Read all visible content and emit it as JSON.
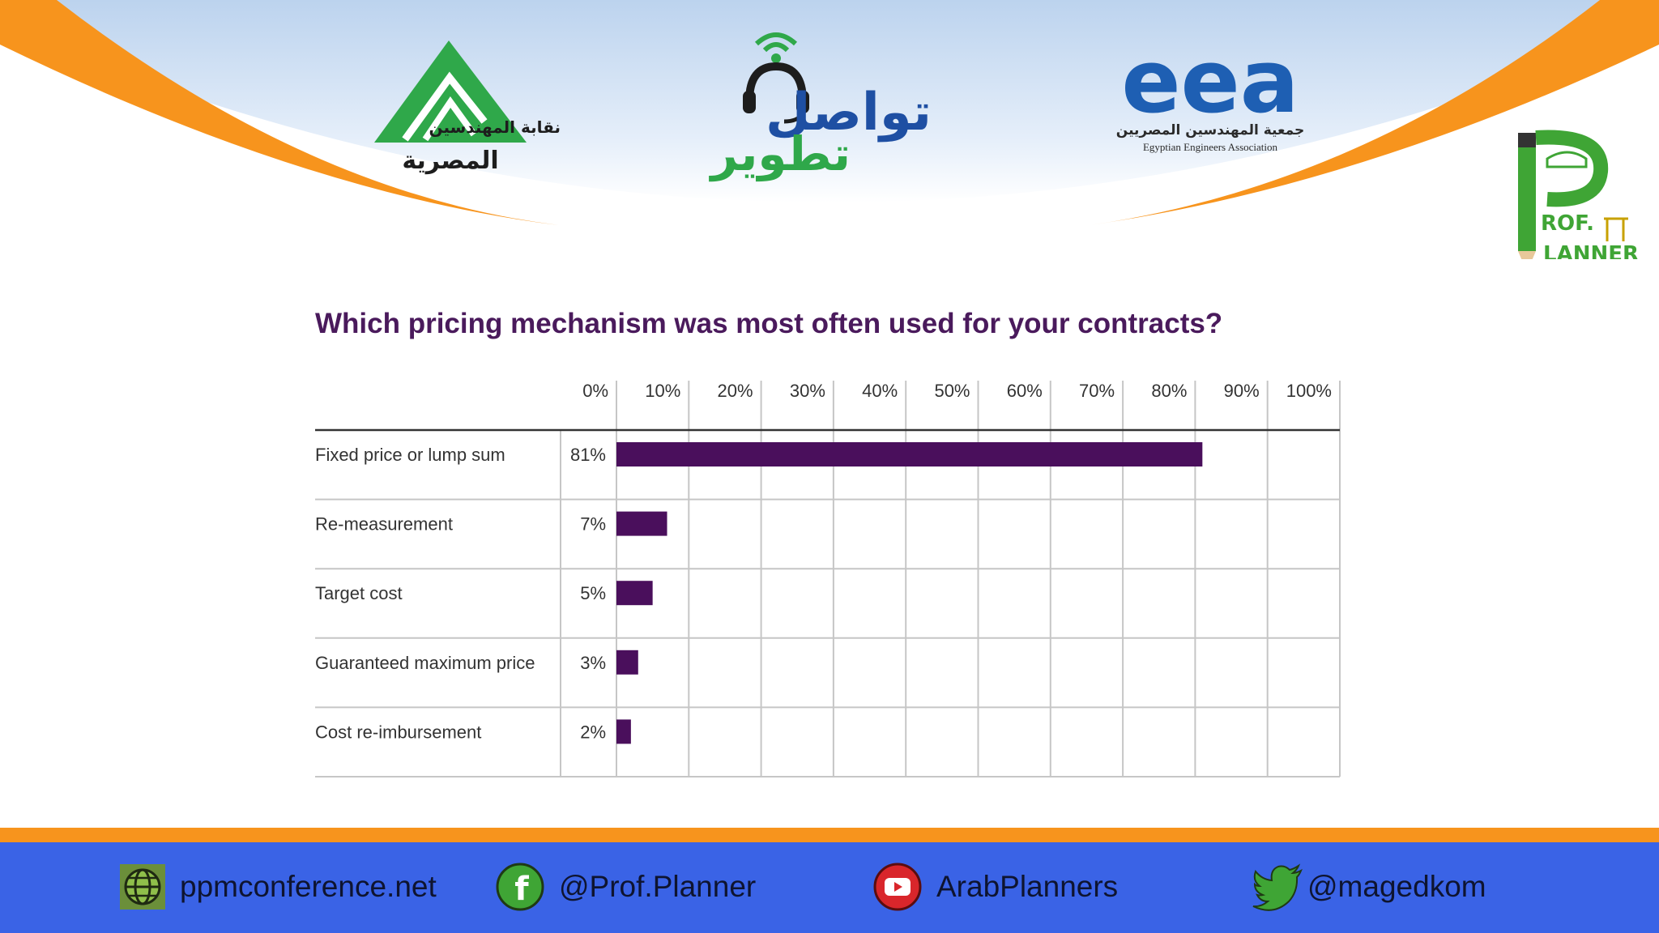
{
  "header": {
    "logos": [
      {
        "name": "engineers-syndicate-logo",
        "line1": "نقابة المهندسين",
        "line2": "المصرية"
      },
      {
        "name": "tawasol-tatweer-logo",
        "line1": "تواصل",
        "line2": "تطوير"
      },
      {
        "name": "eea-logo",
        "mark": "eea",
        "line1": "جمعية المهندسين المصريين",
        "line2": "Egyptian Engineers Association"
      },
      {
        "name": "prof-planner-logo",
        "line1": "ROF.",
        "line2": "LANNER"
      }
    ],
    "colors": {
      "sky": "#c9ddf2",
      "orange": "#f7941d",
      "green": "#2fa84a",
      "blue": "#1e5fb3"
    }
  },
  "chart_data": {
    "type": "bar",
    "orientation": "horizontal",
    "title": "Which pricing mechanism was most often used for your contracts?",
    "categories": [
      "Fixed price or lump sum",
      "Re-measurement",
      "Target cost",
      "Guaranteed maximum price",
      "Cost re-imbursement"
    ],
    "values": [
      81,
      7,
      5,
      3,
      2
    ],
    "value_labels": [
      "81%",
      "7%",
      "5%",
      "3%",
      "2%"
    ],
    "x_ticks": [
      "0%",
      "10%",
      "20%",
      "30%",
      "40%",
      "50%",
      "60%",
      "70%",
      "80%",
      "90%",
      "100%"
    ],
    "xlim": [
      0,
      100
    ],
    "grid": true,
    "bar_color": "#4a0f5c"
  },
  "footer": {
    "website": "ppmconference.net",
    "facebook": "@Prof.Planner",
    "youtube": "ArabPlanners",
    "twitter": "@magedkom",
    "colors": {
      "bar": "#3a63e6",
      "stripe": "#f7941d"
    }
  }
}
